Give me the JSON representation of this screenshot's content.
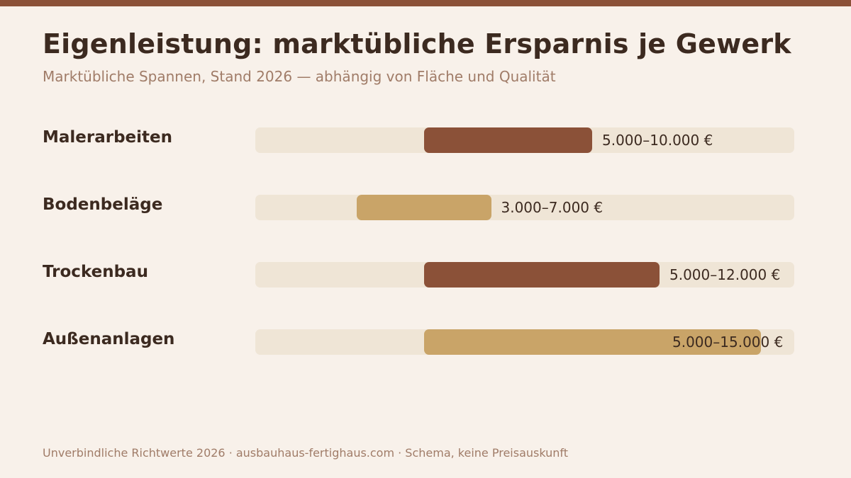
{
  "title": "Eigenleistung: marktübliche Ersparnis je Gewerk",
  "subtitle": "Marktübliche Spannen, Stand 2026 — abhängig von Fläche und Qualität",
  "footer": "Unverbindliche Richtwerte 2026 · ausbauhaus-fertighaus.com · Schema, keine Preisauskunft",
  "colors": {
    "accent_dark": "#8b5138",
    "accent_light": "#c9a468",
    "track": "#efe5d6",
    "text": "#3c2a20",
    "muted": "#a07c68"
  },
  "chart_data": {
    "type": "bar",
    "orientation": "horizontal-range",
    "unit": "€",
    "xlim": [
      0,
      16000
    ],
    "categories": [
      "Malerarbeiten",
      "Bodenbeläge",
      "Trockenbau",
      "Außenanlagen"
    ],
    "ranges": [
      {
        "category": "Malerarbeiten",
        "min": 5000,
        "max": 10000,
        "label": "5.000–10.000 €",
        "color": "#8b5138"
      },
      {
        "category": "Bodenbeläge",
        "min": 3000,
        "max": 7000,
        "label": "3.000–7.000 €",
        "color": "#c9a468"
      },
      {
        "category": "Trockenbau",
        "min": 5000,
        "max": 12000,
        "label": "5.000–12.000 €",
        "color": "#8b5138"
      },
      {
        "category": "Außenanlagen",
        "min": 5000,
        "max": 15000,
        "label": "5.000–15.000 €",
        "color": "#c9a468"
      }
    ]
  }
}
